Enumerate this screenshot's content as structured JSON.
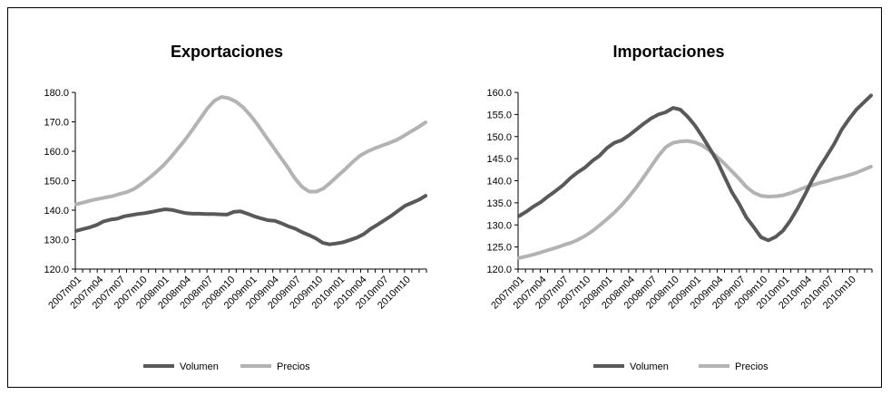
{
  "chart_data": [
    {
      "type": "line",
      "title": "Exportaciones",
      "xlabel": "",
      "ylabel": "",
      "ylim": [
        120,
        180
      ],
      "yticks": [
        "120.0",
        "130.0",
        "140.0",
        "150.0",
        "160.0",
        "170.0",
        "180.0"
      ],
      "x_tick_labels": [
        "2007m01",
        "2007m04",
        "2007m07",
        "2007m10",
        "2008m01",
        "2008m04",
        "2008m07",
        "2008m10",
        "2009m01",
        "2009m04",
        "2009m07",
        "2009m10",
        "2010m01",
        "2010m04",
        "2010m07",
        "2010m10"
      ],
      "legend_position": "bottom",
      "series": [
        {
          "name": "Volumen",
          "color": "#595959",
          "values": [
            133.0,
            133.6,
            134.2,
            135.0,
            136.2,
            136.8,
            137.1,
            137.9,
            138.3,
            138.7,
            139.0,
            139.4,
            139.9,
            140.3,
            140.1,
            139.5,
            139.0,
            138.8,
            138.8,
            138.7,
            138.7,
            138.6,
            138.5,
            139.4,
            139.6,
            138.8,
            137.9,
            137.2,
            136.6,
            136.4,
            135.5,
            134.5,
            133.7,
            132.5,
            131.5,
            130.4,
            128.9,
            128.4,
            128.7,
            129.1,
            129.9,
            130.7,
            131.9,
            133.7,
            135.1,
            136.6,
            138.1,
            139.8,
            141.5,
            142.5,
            143.5,
            144.9
          ]
        },
        {
          "name": "Precios",
          "color": "#b3b3b3",
          "values": [
            142.0,
            142.6,
            143.3,
            143.8,
            144.3,
            144.8,
            145.5,
            146.2,
            147.3,
            149.0,
            150.9,
            153.0,
            155.3,
            158.0,
            161.0,
            164.0,
            167.4,
            171.0,
            174.5,
            177.2,
            178.5,
            178.0,
            176.8,
            174.8,
            172.0,
            168.8,
            165.2,
            161.7,
            158.2,
            154.8,
            151.0,
            148.0,
            146.3,
            146.3,
            147.4,
            149.5,
            151.8,
            154.0,
            156.4,
            158.5,
            159.9,
            161.0,
            161.9,
            162.8,
            163.8,
            165.2,
            166.7,
            168.2,
            169.8
          ]
        }
      ]
    },
    {
      "type": "line",
      "title": "Importaciones",
      "xlabel": "",
      "ylabel": "",
      "ylim": [
        120,
        160
      ],
      "yticks": [
        "120.0",
        "125.0",
        "130.0",
        "135.0",
        "140.0",
        "145.0",
        "150.0",
        "155.0",
        "160.0"
      ],
      "x_tick_labels": [
        "2007m01",
        "2007m04",
        "2007m07",
        "2007m10",
        "2008m01",
        "2008m04",
        "2008m07",
        "2008m10",
        "2009m01",
        "2009m04",
        "2009m07",
        "2009m10",
        "2010m01",
        "2010m04",
        "2010m07",
        "2010m10"
      ],
      "legend_position": "bottom",
      "series": [
        {
          "name": "Volumen",
          "color": "#595959",
          "values": [
            132.0,
            133.0,
            134.2,
            135.2,
            136.5,
            137.7,
            139.0,
            140.6,
            141.9,
            143.0,
            144.5,
            145.7,
            147.4,
            148.6,
            149.2,
            150.3,
            151.6,
            152.9,
            154.1,
            155.0,
            155.5,
            156.5,
            156.1,
            154.5,
            152.5,
            150.0,
            147.3,
            144.5,
            141.0,
            137.5,
            134.8,
            131.7,
            129.5,
            127.2,
            126.5,
            127.3,
            128.7,
            131.0,
            133.8,
            136.9,
            140.2,
            143.1,
            145.7,
            148.4,
            151.6,
            154.0,
            156.1,
            157.7,
            159.3
          ]
        },
        {
          "name": "Precios",
          "color": "#b3b3b3",
          "values": [
            122.5,
            122.9,
            123.3,
            123.8,
            124.3,
            124.8,
            125.4,
            125.9,
            126.6,
            127.5,
            128.6,
            129.9,
            131.3,
            132.8,
            134.5,
            136.4,
            138.5,
            140.8,
            143.2,
            145.6,
            147.6,
            148.6,
            148.9,
            149.0,
            148.7,
            148.0,
            146.8,
            145.4,
            143.9,
            142.2,
            140.5,
            138.6,
            137.3,
            136.6,
            136.4,
            136.5,
            136.7,
            137.2,
            137.8,
            138.5,
            139.0,
            139.5,
            139.9,
            140.4,
            140.8,
            141.3,
            141.8,
            142.5,
            143.2
          ]
        }
      ]
    }
  ]
}
